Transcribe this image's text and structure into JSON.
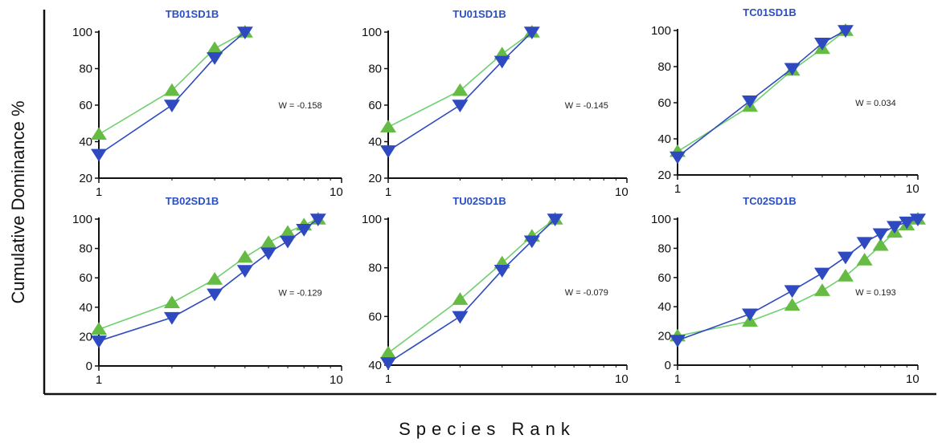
{
  "figure": {
    "ylabel": "Cumulative Dominance %",
    "xlabel": "Species Rank",
    "colors": {
      "title": "#2a4fc4",
      "green": "#6fd06f",
      "green_marker": "#66bb44",
      "blue": "#2f49c0",
      "frame": "#111111"
    }
  },
  "chart_data": [
    {
      "type": "line",
      "title": "TB01SD1B",
      "x_scale": "log",
      "xlim": [
        1,
        10
      ],
      "ylim": [
        20,
        100
      ],
      "yticks": [
        20,
        40,
        60,
        80,
        100
      ],
      "xticks": [
        1,
        10
      ],
      "annotation": "W = -0.158",
      "series": [
        {
          "marker": "triangle-up",
          "color": "green",
          "x": [
            1,
            2,
            3,
            4
          ],
          "y": [
            44,
            68,
            91,
            100
          ]
        },
        {
          "marker": "triangle-down",
          "color": "blue",
          "x": [
            1,
            2,
            3,
            4
          ],
          "y": [
            33,
            60,
            86,
            100
          ]
        }
      ]
    },
    {
      "type": "line",
      "title": "TU01SD1B",
      "x_scale": "log",
      "xlim": [
        1,
        10
      ],
      "ylim": [
        20,
        100
      ],
      "yticks": [
        20,
        40,
        60,
        80,
        100
      ],
      "xticks": [
        1,
        10
      ],
      "annotation": "W = -0.145",
      "series": [
        {
          "marker": "triangle-up",
          "color": "green",
          "x": [
            1,
            2,
            3,
            4
          ],
          "y": [
            48,
            68,
            88,
            100
          ]
        },
        {
          "marker": "triangle-down",
          "color": "blue",
          "x": [
            1,
            2,
            3,
            4
          ],
          "y": [
            35,
            60,
            84,
            100
          ]
        }
      ]
    },
    {
      "type": "line",
      "title": "TC01SD1B",
      "x_scale": "log",
      "xlim": [
        1,
        10
      ],
      "ylim": [
        20,
        100
      ],
      "yticks": [
        20,
        40,
        60,
        80,
        100
      ],
      "xticks": [
        1,
        10
      ],
      "annotation": "W = 0.034",
      "series": [
        {
          "marker": "triangle-up",
          "color": "green",
          "x": [
            1,
            2,
            3,
            4,
            5
          ],
          "y": [
            33,
            58,
            78,
            90,
            100
          ]
        },
        {
          "marker": "triangle-down",
          "color": "blue",
          "x": [
            1,
            2,
            3,
            4,
            5
          ],
          "y": [
            30,
            61,
            79,
            93,
            100
          ]
        }
      ]
    },
    {
      "type": "line",
      "title": "TB02SD1B",
      "x_scale": "log",
      "xlim": [
        1,
        10
      ],
      "ylim": [
        0,
        100
      ],
      "yticks": [
        0,
        20,
        40,
        60,
        80,
        100
      ],
      "xticks": [
        1,
        10
      ],
      "annotation": "W = -0.129",
      "series": [
        {
          "marker": "triangle-up",
          "color": "green",
          "x": [
            1,
            2,
            3,
            4,
            5,
            6,
            7,
            8
          ],
          "y": [
            25,
            43,
            59,
            74,
            84,
            91,
            96,
            100
          ]
        },
        {
          "marker": "triangle-down",
          "color": "blue",
          "x": [
            1,
            2,
            3,
            4,
            5,
            6,
            7,
            8
          ],
          "y": [
            17,
            33,
            49,
            65,
            77,
            85,
            93,
            100
          ]
        }
      ]
    },
    {
      "type": "line",
      "title": "TU02SD1B",
      "x_scale": "log",
      "xlim": [
        1,
        10
      ],
      "ylim": [
        40,
        100
      ],
      "yticks": [
        40,
        60,
        80,
        100
      ],
      "xticks": [
        1,
        10
      ],
      "annotation": "W = -0.079",
      "series": [
        {
          "marker": "triangle-up",
          "color": "green",
          "x": [
            1,
            2,
            3,
            4,
            5
          ],
          "y": [
            45,
            67,
            82,
            93,
            100
          ]
        },
        {
          "marker": "triangle-down",
          "color": "blue",
          "x": [
            1,
            2,
            3,
            4,
            5
          ],
          "y": [
            41,
            60,
            79,
            91,
            100
          ]
        }
      ]
    },
    {
      "type": "line",
      "title": "TC02SD1B",
      "x_scale": "log",
      "xlim": [
        1,
        10
      ],
      "ylim": [
        0,
        100
      ],
      "yticks": [
        0,
        20,
        40,
        60,
        80,
        100
      ],
      "xticks": [
        1,
        10
      ],
      "annotation": "W = 0.193",
      "series": [
        {
          "marker": "triangle-up",
          "color": "green",
          "x": [
            1,
            2,
            3,
            4,
            5,
            6,
            7,
            8,
            9,
            10
          ],
          "y": [
            20,
            30,
            41,
            51,
            61,
            72,
            82,
            91,
            96,
            100
          ]
        },
        {
          "marker": "triangle-down",
          "color": "blue",
          "x": [
            1,
            2,
            3,
            4,
            5,
            6,
            7,
            8,
            9,
            10
          ],
          "y": [
            17,
            35,
            51,
            63,
            74,
            84,
            90,
            95,
            98,
            100
          ]
        }
      ]
    }
  ]
}
